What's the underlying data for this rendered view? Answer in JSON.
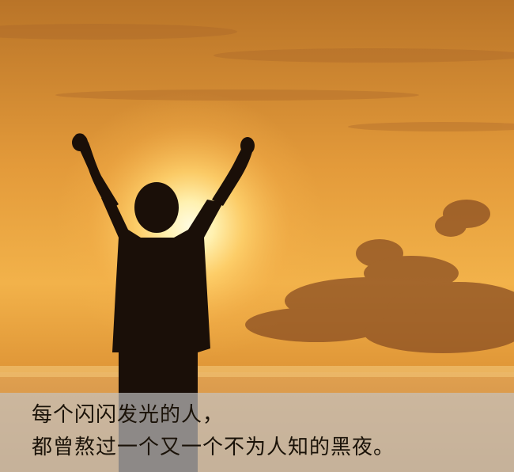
{
  "image": {
    "description_subject": "silhouette-person-arms-raised-sunset",
    "colors": {
      "sky_top": "#c8822e",
      "sky_mid": "#f2b24a",
      "sun_core": "#fff6c8",
      "horizon": "#d89032",
      "silhouette": "#1a0f08",
      "caption_band": "#c4c4c4",
      "caption_text": "#1a1208"
    }
  },
  "caption": {
    "line1": "每个闪闪发光的人，",
    "line2": "都曾熬过一个又一个不为人知的黑夜。"
  }
}
